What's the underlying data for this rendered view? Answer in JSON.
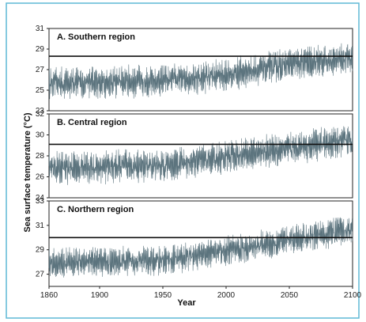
{
  "colors": {
    "frame_border": "#5fb9d6",
    "series": "#4a6570",
    "threshold": "#111111",
    "axis": "#222222"
  },
  "chart_data": {
    "type": "line",
    "xlabel": "Year",
    "ylabel": "Sea surface temperature (°C)",
    "xlim": [
      1860,
      2100
    ],
    "xticks": [
      "1860",
      "1900",
      "1950",
      "2000",
      "2050",
      "2100"
    ],
    "grid": false,
    "panels": [
      {
        "title": "A. Southern region",
        "ylim": [
          23,
          31
        ],
        "yticks": [
          "23",
          "25",
          "27",
          "29",
          "31"
        ],
        "threshold": 28.3,
        "trend": [
          [
            1860,
            25.7
          ],
          [
            1950,
            25.9
          ],
          [
            2000,
            26.5
          ],
          [
            2050,
            27.5
          ],
          [
            2100,
            28.2
          ]
        ],
        "variability": 1.3
      },
      {
        "title": "B. Central region",
        "ylim": [
          24,
          32
        ],
        "yticks": [
          "24",
          "26",
          "28",
          "30",
          "32"
        ],
        "threshold": 29.1,
        "trend": [
          [
            1860,
            26.8
          ],
          [
            1950,
            27.1
          ],
          [
            2000,
            27.9
          ],
          [
            2050,
            28.7
          ],
          [
            2100,
            29.5
          ]
        ],
        "variability": 1.3
      },
      {
        "title": "C. Northern region",
        "ylim": [
          26,
          33
        ],
        "yticks": [
          "27",
          "29",
          "31",
          "33"
        ],
        "threshold": 30.0,
        "trend": [
          [
            1860,
            27.9
          ],
          [
            1950,
            28.1
          ],
          [
            2000,
            28.9
          ],
          [
            2050,
            29.8
          ],
          [
            2100,
            30.7
          ]
        ],
        "variability": 1.0
      }
    ]
  }
}
